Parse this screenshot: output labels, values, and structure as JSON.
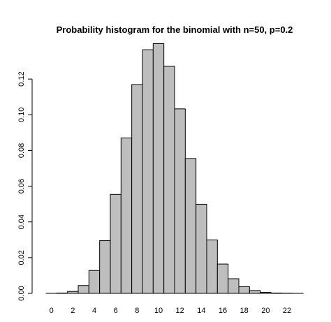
{
  "chart_data": {
    "type": "bar",
    "title": "Probability histogram for the binomial with n=50, p=0.2",
    "xlabel": "",
    "ylabel": "",
    "x": [
      0,
      1,
      2,
      3,
      4,
      5,
      6,
      7,
      8,
      9,
      10,
      11,
      12,
      13,
      14,
      15,
      16,
      17,
      18,
      19,
      20,
      21,
      22,
      23
    ],
    "values": [
      1e-05,
      0.0002,
      0.0011,
      0.0044,
      0.0128,
      0.0295,
      0.0554,
      0.087,
      0.1169,
      0.1364,
      0.1398,
      0.1271,
      0.1033,
      0.0755,
      0.0499,
      0.0299,
      0.0164,
      0.0082,
      0.0037,
      0.0016,
      0.0006,
      0.0002,
      0.0001,
      2e-05
    ],
    "xticks": [
      0,
      2,
      4,
      6,
      8,
      10,
      12,
      14,
      16,
      18,
      20,
      22
    ],
    "xtick_labels": [
      "0",
      "2",
      "4",
      "6",
      "8",
      "10",
      "12",
      "14",
      "16",
      "18",
      "20",
      "22"
    ],
    "yticks": [
      0.0,
      0.02,
      0.04,
      0.06,
      0.08,
      0.1,
      0.12
    ],
    "ytick_labels": [
      "0.00",
      "0.02",
      "0.04",
      "0.06",
      "0.08",
      "0.10",
      "0.12"
    ],
    "xlim": [
      -0.5,
      23.5
    ],
    "ylim": [
      0,
      0.14
    ],
    "grid": false,
    "legend": "none",
    "colors": {
      "bar_fill": "#bebebe",
      "bar_stroke": "#000000",
      "axis": "#000000",
      "text": "#000000"
    }
  }
}
